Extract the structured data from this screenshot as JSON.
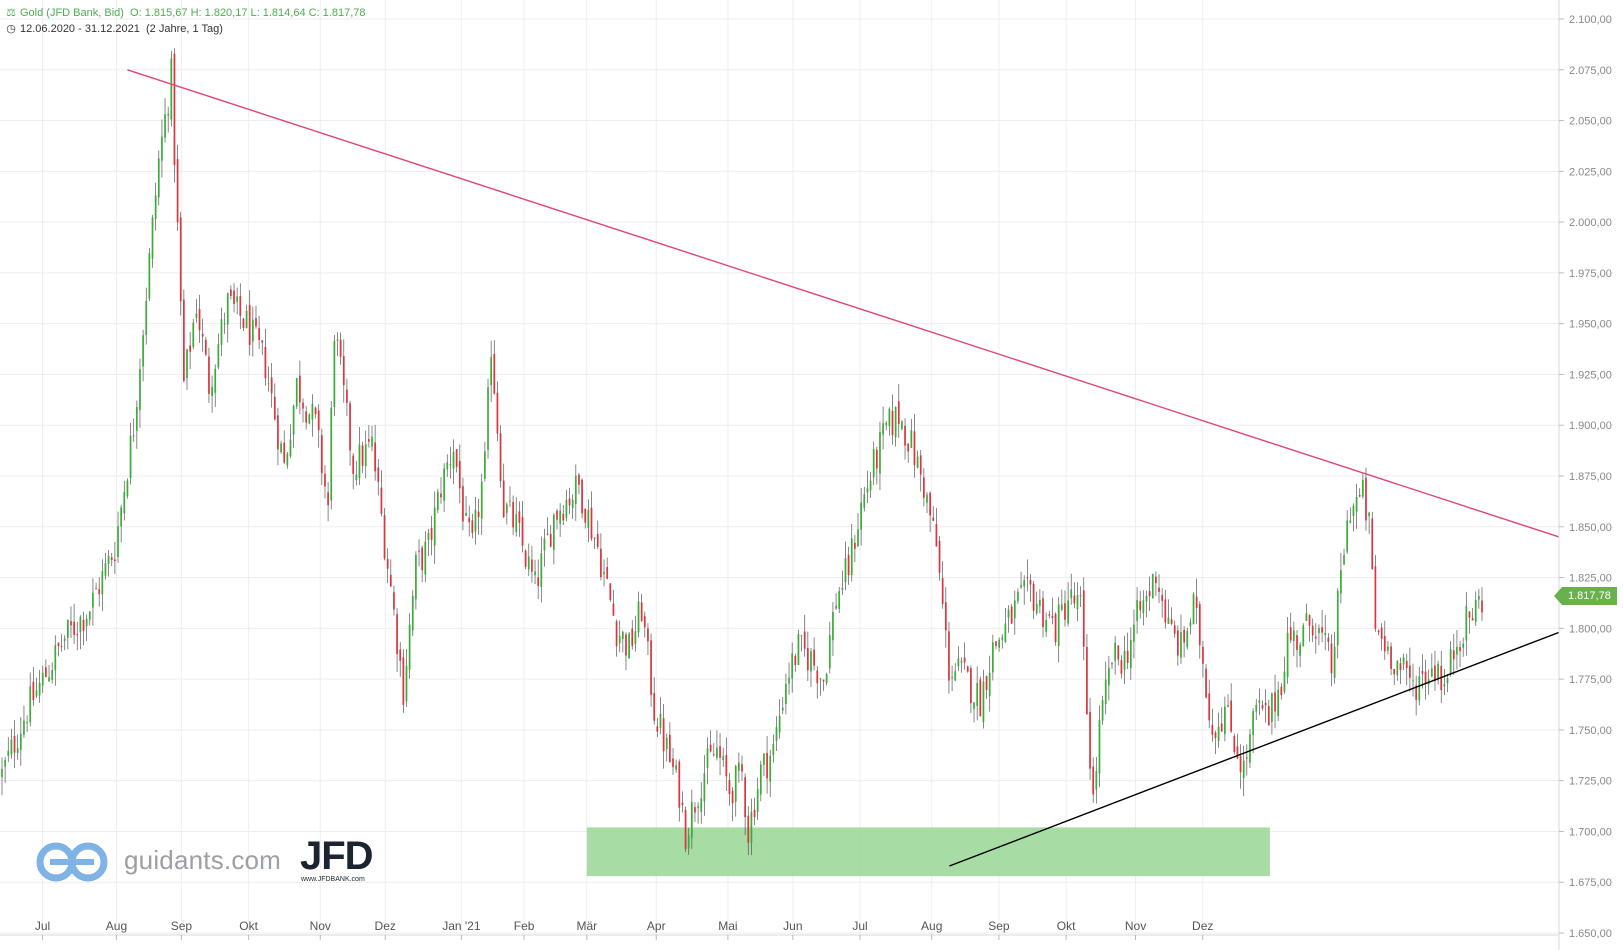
{
  "header": {
    "instrument": "Gold (JFD Bank, Bid)",
    "ohlc": "O: 1.815,67  H: 1.820,17  L: 1.814,64  C: 1.817,78",
    "period": "12.06.2020 - 31.12.2021",
    "range": "(2 Jahre, 1 Tag)"
  },
  "logo": {
    "site": "guidants.com",
    "brand": "JFD",
    "brand_url": "www.JFDBANK.com"
  },
  "last_price_label": "1.817,78",
  "colors": {
    "up": "#3cab3c",
    "down": "#d9363e",
    "resistance": "#e0457b",
    "support": "#000000",
    "zone": "#9dd99b"
  },
  "chart_data": {
    "type": "candlestick",
    "ylim": [
      1650,
      2100
    ],
    "y_ticks": [
      "1.650,00",
      "1.675,00",
      "1.700,00",
      "1.725,00",
      "1.750,00",
      "1.775,00",
      "1.800,00",
      "1.825,00",
      "1.850,00",
      "1.875,00",
      "1.900,00",
      "1.925,00",
      "1.950,00",
      "1.975,00",
      "2.000,00",
      "2.025,00",
      "2.050,00",
      "2.075,00",
      "2.100,00"
    ],
    "x_labels": [
      "Jul",
      "Aug",
      "Sep",
      "Okt",
      "Nov",
      "Dez",
      "Jan '21",
      "Feb",
      "Mär",
      "Apr",
      "Mai",
      "Jun",
      "Jul",
      "Aug",
      "Sep",
      "Okt",
      "Nov",
      "Dez"
    ],
    "price_path": [
      [
        0,
        1728
      ],
      [
        8,
        1760
      ],
      [
        20,
        1795
      ],
      [
        28,
        1810
      ],
      [
        36,
        1840
      ],
      [
        42,
        1900
      ],
      [
        50,
        2030
      ],
      [
        54,
        2072
      ],
      [
        58,
        1920
      ],
      [
        62,
        1960
      ],
      [
        66,
        1920
      ],
      [
        72,
        1960
      ],
      [
        78,
        1950
      ],
      [
        84,
        1930
      ],
      [
        90,
        1880
      ],
      [
        94,
        1920
      ],
      [
        100,
        1900
      ],
      [
        104,
        1860
      ],
      [
        106,
        1948
      ],
      [
        112,
        1880
      ],
      [
        118,
        1890
      ],
      [
        124,
        1820
      ],
      [
        128,
        1770
      ],
      [
        132,
        1830
      ],
      [
        136,
        1840
      ],
      [
        140,
        1870
      ],
      [
        144,
        1890
      ],
      [
        148,
        1848
      ],
      [
        150,
        1840
      ],
      [
        154,
        1880
      ],
      [
        156,
        1940
      ],
      [
        160,
        1860
      ],
      [
        164,
        1850
      ],
      [
        170,
        1820
      ],
      [
        176,
        1855
      ],
      [
        178,
        1860
      ],
      [
        184,
        1870
      ],
      [
        190,
        1840
      ],
      [
        196,
        1800
      ],
      [
        200,
        1790
      ],
      [
        204,
        1810
      ],
      [
        208,
        1760
      ],
      [
        212,
        1740
      ],
      [
        216,
        1720
      ],
      [
        218,
        1700
      ],
      [
        224,
        1730
      ],
      [
        228,
        1740
      ],
      [
        232,
        1720
      ],
      [
        236,
        1728
      ],
      [
        238,
        1700
      ],
      [
        242,
        1730
      ],
      [
        246,
        1740
      ],
      [
        250,
        1775
      ],
      [
        254,
        1790
      ],
      [
        258,
        1785
      ],
      [
        262,
        1775
      ],
      [
        266,
        1815
      ],
      [
        270,
        1830
      ],
      [
        274,
        1860
      ],
      [
        278,
        1880
      ],
      [
        282,
        1898
      ],
      [
        286,
        1905
      ],
      [
        290,
        1890
      ],
      [
        294,
        1870
      ],
      [
        298,
        1840
      ],
      [
        302,
        1780
      ],
      [
        306,
        1778
      ],
      [
        312,
        1765
      ],
      [
        316,
        1790
      ],
      [
        320,
        1800
      ],
      [
        324,
        1812
      ],
      [
        328,
        1818
      ],
      [
        332,
        1808
      ],
      [
        336,
        1800
      ],
      [
        340,
        1815
      ],
      [
        344,
        1810
      ],
      [
        346,
        1760
      ],
      [
        348,
        1715
      ],
      [
        350,
        1750
      ],
      [
        354,
        1785
      ],
      [
        358,
        1785
      ],
      [
        362,
        1805
      ],
      [
        366,
        1818
      ],
      [
        368,
        1828
      ],
      [
        372,
        1800
      ],
      [
        376,
        1790
      ],
      [
        380,
        1810
      ],
      [
        382,
        1795
      ],
      [
        386,
        1750
      ],
      [
        390,
        1760
      ],
      [
        394,
        1740
      ],
      [
        396,
        1730
      ],
      [
        400,
        1760
      ],
      [
        404,
        1755
      ],
      [
        408,
        1775
      ],
      [
        410,
        1795
      ],
      [
        414,
        1795
      ],
      [
        418,
        1805
      ],
      [
        422,
        1790
      ],
      [
        424,
        1780
      ],
      [
        426,
        1810
      ],
      [
        428,
        1840
      ],
      [
        430,
        1860
      ],
      [
        434,
        1865
      ],
      [
        436,
        1850
      ],
      [
        438,
        1800
      ],
      [
        442,
        1790
      ],
      [
        446,
        1780
      ],
      [
        450,
        1772
      ],
      [
        454,
        1778
      ],
      [
        458,
        1782
      ],
      [
        460,
        1770
      ],
      [
        464,
        1795
      ],
      [
        468,
        1805
      ],
      [
        472,
        1815
      ]
    ],
    "resistance_line": {
      "from": [
        "2020-08-07",
        2075
      ],
      "to": [
        "2021-12-31",
        1845
      ]
    },
    "support_line": {
      "from": [
        "2021-08-09",
        1683
      ],
      "to": [
        "2021-12-31",
        1798
      ]
    },
    "support_zone": {
      "low": 1678,
      "high": 1702,
      "from": "2021-03-01",
      "to": "2021-12-31"
    }
  }
}
